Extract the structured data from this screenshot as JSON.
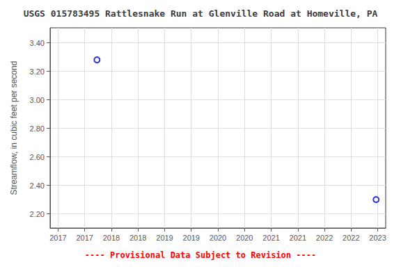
{
  "chart_data": {
    "type": "scatter",
    "title": "USGS 015783495 Rattlesnake Run at Glenville Road at Homeville, PA",
    "ylabel": "Streamflow, in cubic feet per second",
    "annotations": [
      {
        "text": "---- Provisional Data Subject to Revision ----",
        "color": "#ff0000"
      }
    ],
    "x": [
      2017.73,
      2022.97
    ],
    "values": [
      3.28,
      2.3
    ],
    "color": "#0000cc",
    "marker": "open_circle",
    "xlim": [
      2016.85,
      2023.15
    ],
    "xticks": [
      2017,
      {
        "value": 2017.5,
        "label": "2017"
      },
      2018,
      {
        "value": 2018.5,
        "label": "2018"
      },
      2019,
      {
        "value": 2019.5,
        "label": "2019"
      },
      2020,
      {
        "value": 2020.5,
        "label": "2020"
      },
      2021,
      {
        "value": 2021.5,
        "label": "2021"
      },
      2022,
      {
        "value": 2022.5,
        "label": "2022"
      },
      2023
    ],
    "ylim": [
      2.1,
      3.505
    ],
    "yticks": [
      {
        "value": 2.2,
        "label": "2.20"
      },
      {
        "value": 2.4,
        "label": "2.40"
      },
      {
        "value": 2.6,
        "label": "2.60"
      },
      {
        "value": 2.8,
        "label": "2.80"
      },
      {
        "value": 3.0,
        "label": "3.00"
      },
      {
        "value": 3.2,
        "label": "3.20"
      },
      {
        "value": 3.4,
        "label": "3.40"
      }
    ],
    "grid": true
  }
}
